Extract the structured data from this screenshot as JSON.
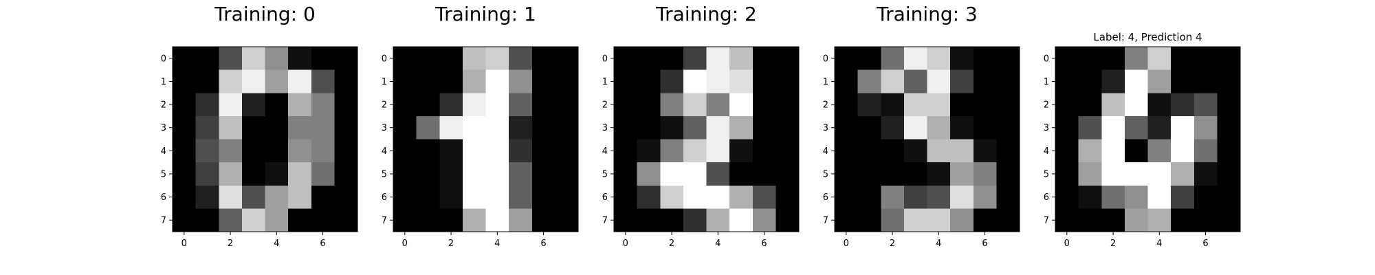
{
  "chart_data": [
    {
      "type": "heatmap",
      "title": "Training: 0",
      "colormap": "gray",
      "vmin": 0,
      "vmax": 16,
      "xticks": [
        "0",
        "2",
        "4",
        "6"
      ],
      "yticks": [
        "0",
        "1",
        "2",
        "3",
        "4",
        "5",
        "6",
        "7"
      ],
      "values": [
        [
          0,
          0,
          5,
          13,
          9,
          1,
          0,
          0
        ],
        [
          0,
          0,
          13,
          15,
          10,
          15,
          5,
          0
        ],
        [
          0,
          3,
          15,
          2,
          0,
          11,
          8,
          0
        ],
        [
          0,
          4,
          12,
          0,
          0,
          8,
          8,
          0
        ],
        [
          0,
          5,
          8,
          0,
          0,
          9,
          8,
          0
        ],
        [
          0,
          4,
          11,
          0,
          1,
          12,
          7,
          0
        ],
        [
          0,
          2,
          14,
          5,
          10,
          12,
          0,
          0
        ],
        [
          0,
          0,
          6,
          13,
          10,
          0,
          0,
          0
        ]
      ]
    },
    {
      "type": "heatmap",
      "title": "Training: 1",
      "colormap": "gray",
      "vmin": 0,
      "vmax": 16,
      "xticks": [
        "0",
        "2",
        "4",
        "6"
      ],
      "yticks": [
        "0",
        "1",
        "2",
        "3",
        "4",
        "5",
        "6",
        "7"
      ],
      "values": [
        [
          0,
          0,
          0,
          12,
          13,
          5,
          0,
          0
        ],
        [
          0,
          0,
          0,
          11,
          16,
          9,
          0,
          0
        ],
        [
          0,
          0,
          3,
          15,
          16,
          6,
          0,
          0
        ],
        [
          0,
          7,
          15,
          16,
          16,
          2,
          0,
          0
        ],
        [
          0,
          0,
          1,
          16,
          16,
          3,
          0,
          0
        ],
        [
          0,
          0,
          1,
          16,
          16,
          6,
          0,
          0
        ],
        [
          0,
          0,
          1,
          16,
          16,
          6,
          0,
          0
        ],
        [
          0,
          0,
          0,
          11,
          16,
          10,
          0,
          0
        ]
      ]
    },
    {
      "type": "heatmap",
      "title": "Training: 2",
      "colormap": "gray",
      "vmin": 0,
      "vmax": 16,
      "xticks": [
        "0",
        "2",
        "4",
        "6"
      ],
      "yticks": [
        "0",
        "1",
        "2",
        "3",
        "4",
        "5",
        "6",
        "7"
      ],
      "values": [
        [
          0,
          0,
          0,
          4,
          15,
          12,
          0,
          0
        ],
        [
          0,
          0,
          3,
          16,
          15,
          14,
          0,
          0
        ],
        [
          0,
          0,
          8,
          13,
          8,
          16,
          0,
          0
        ],
        [
          0,
          0,
          1,
          6,
          15,
          11,
          0,
          0
        ],
        [
          0,
          1,
          8,
          13,
          15,
          1,
          0,
          0
        ],
        [
          0,
          9,
          16,
          16,
          5,
          0,
          0,
          0
        ],
        [
          0,
          3,
          13,
          16,
          16,
          11,
          5,
          0
        ],
        [
          0,
          0,
          0,
          3,
          11,
          16,
          9,
          0
        ]
      ]
    },
    {
      "type": "heatmap",
      "title": "Training: 3",
      "colormap": "gray",
      "vmin": 0,
      "vmax": 16,
      "xticks": [
        "0",
        "2",
        "4",
        "6"
      ],
      "yticks": [
        "0",
        "1",
        "2",
        "3",
        "4",
        "5",
        "6",
        "7"
      ],
      "values": [
        [
          0,
          0,
          7,
          15,
          13,
          1,
          0,
          0
        ],
        [
          0,
          8,
          13,
          6,
          15,
          4,
          0,
          0
        ],
        [
          0,
          2,
          1,
          13,
          13,
          0,
          0,
          0
        ],
        [
          0,
          0,
          2,
          15,
          11,
          1,
          0,
          0
        ],
        [
          0,
          0,
          0,
          1,
          12,
          12,
          1,
          0
        ],
        [
          0,
          0,
          0,
          0,
          1,
          10,
          8,
          0
        ],
        [
          0,
          0,
          8,
          4,
          5,
          14,
          9,
          0
        ],
        [
          0,
          0,
          7,
          13,
          13,
          9,
          0,
          0
        ]
      ]
    },
    {
      "type": "heatmap",
      "title": "Label: 4, Prediction 4",
      "colormap": "gray",
      "vmin": 0,
      "vmax": 16,
      "xticks": [
        "0",
        "2",
        "4",
        "6"
      ],
      "yticks": [
        "0",
        "1",
        "2",
        "3",
        "4",
        "5",
        "6",
        "7"
      ],
      "values": [
        [
          0,
          0,
          0,
          8,
          13,
          0,
          0,
          0
        ],
        [
          0,
          0,
          2,
          16,
          10,
          0,
          0,
          0
        ],
        [
          0,
          0,
          12,
          16,
          1,
          3,
          5,
          0
        ],
        [
          0,
          5,
          16,
          6,
          2,
          16,
          9,
          0
        ],
        [
          0,
          11,
          16,
          0,
          8,
          16,
          7,
          0
        ],
        [
          0,
          10,
          16,
          16,
          16,
          11,
          1,
          0
        ],
        [
          0,
          1,
          7,
          9,
          16,
          4,
          0,
          0
        ],
        [
          0,
          0,
          0,
          10,
          11,
          0,
          0,
          0
        ]
      ]
    }
  ]
}
